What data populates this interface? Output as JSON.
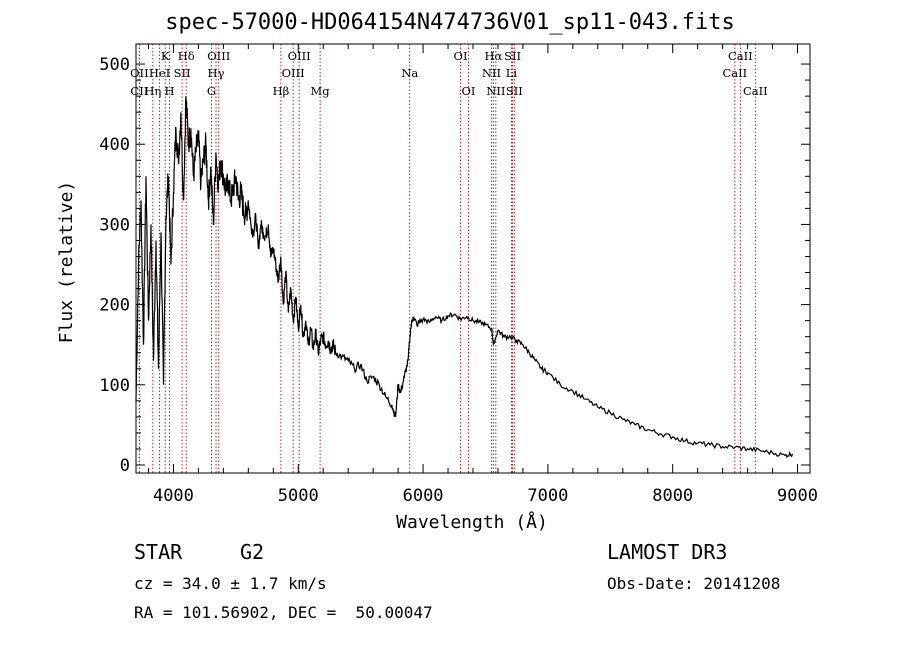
{
  "title": "spec-57000-HD064154N474736V01_sp11-043.fits",
  "footer": {
    "class_label": "STAR",
    "subclass": "G2",
    "survey": "LAMOST DR3",
    "cz": "cz = 34.0 ± 1.7 km/s",
    "obs_date": "Obs-Date: 20141208",
    "coords": "RA = 101.56902, DEC =  50.00047"
  },
  "chart_data": {
    "type": "line",
    "xlabel": "Wavelength (Å)",
    "ylabel": "Flux (relative)",
    "xlim": [
      3700,
      9100
    ],
    "ylim": [
      -10,
      525
    ],
    "xticks": [
      4000,
      5000,
      6000,
      7000,
      8000,
      9000
    ],
    "yticks": [
      0,
      100,
      200,
      300,
      400,
      500
    ],
    "line_color": "#000000",
    "marker_color": "#cc0000",
    "series": [
      {
        "x": [
          3700,
          3720,
          3740,
          3760,
          3780,
          3800,
          3820,
          3840,
          3860,
          3880,
          3900,
          3920,
          3940,
          3960,
          3980,
          4000,
          4020,
          4040,
          4060,
          4080,
          4100,
          4120,
          4140,
          4160,
          4180,
          4200,
          4220,
          4240,
          4260,
          4280,
          4300,
          4320,
          4340,
          4360,
          4380,
          4400,
          4420,
          4440,
          4460,
          4480,
          4500,
          4520,
          4540,
          4560,
          4580,
          4600,
          4620,
          4640,
          4660,
          4680,
          4700,
          4720,
          4740,
          4760,
          4780,
          4800,
          4820,
          4840,
          4860,
          4880,
          4900,
          4920,
          4940,
          4960,
          4980,
          5000,
          5020,
          5040,
          5060,
          5080,
          5100,
          5120,
          5140,
          5160,
          5180,
          5200,
          5220,
          5240,
          5260,
          5280,
          5300,
          5350,
          5400,
          5450,
          5500,
          5550,
          5600,
          5650,
          5700,
          5750,
          5780,
          5800,
          5820,
          5850,
          5880,
          5900,
          5920,
          5950,
          6000,
          6050,
          6100,
          6150,
          6200,
          6250,
          6300,
          6350,
          6400,
          6450,
          6500,
          6550,
          6563,
          6600,
          6650,
          6700,
          6750,
          6800,
          6850,
          6900,
          6950,
          7000,
          7100,
          7200,
          7300,
          7400,
          7500,
          7600,
          7700,
          7800,
          7900,
          8000,
          8100,
          8200,
          8300,
          8400,
          8500,
          8600,
          8700,
          8800,
          8900,
          8960
        ],
        "y": [
          80,
          250,
          330,
          150,
          360,
          180,
          300,
          130,
          280,
          120,
          290,
          100,
          310,
          360,
          250,
          340,
          420,
          380,
          440,
          330,
          460,
          400,
          420,
          360,
          390,
          410,
          350,
          380,
          400,
          330,
          370,
          300,
          390,
          350,
          380,
          360,
          340,
          355,
          330,
          345,
          360,
          330,
          340,
          320,
          310,
          330,
          300,
          290,
          310,
          270,
          300,
          290,
          285,
          300,
          260,
          270,
          250,
          230,
          260,
          200,
          240,
          190,
          220,
          180,
          210,
          170,
          200,
          160,
          180,
          150,
          170,
          145,
          165,
          140,
          155,
          160,
          150,
          155,
          145,
          150,
          140,
          135,
          130,
          120,
          125,
          105,
          110,
          100,
          85,
          75,
          60,
          100,
          90,
          110,
          130,
          170,
          185,
          175,
          182,
          178,
          185,
          180,
          186,
          188,
          182,
          185,
          180,
          178,
          175,
          170,
          150,
          168,
          160,
          160,
          155,
          150,
          140,
          130,
          120,
          115,
          100,
          92,
          82,
          72,
          65,
          57,
          50,
          44,
          39,
          35,
          30,
          27,
          25,
          23,
          22,
          20,
          18,
          15,
          12,
          14
        ]
      }
    ],
    "lines": [
      {
        "name": "Hδ",
        "x": 4102,
        "row": 1
      },
      {
        "name": "K",
        "x": 3934,
        "row": 1
      },
      {
        "name": "Hγ",
        "x": 4341,
        "row": 2
      },
      {
        "name": "OII",
        "x": 3727,
        "row": 2
      },
      {
        "name": "HeI",
        "x": 3889,
        "row": 2
      },
      {
        "name": "SII",
        "x": 4069,
        "row": 2
      },
      {
        "name": "CII",
        "x": 3727,
        "row": 3
      },
      {
        "name": "Hη",
        "x": 3835,
        "row": 3
      },
      {
        "name": "H",
        "x": 3969,
        "row": 3
      },
      {
        "name": "OIII",
        "x": 4363,
        "row": 1
      },
      {
        "name": "G",
        "x": 4305,
        "row": 3
      },
      {
        "name": "Hβ",
        "x": 4861,
        "row": 3
      },
      {
        "name": "OIII",
        "x": 5007,
        "row": 1
      },
      {
        "name": "OIII",
        "x": 4959,
        "row": 2
      },
      {
        "name": "Mg",
        "x": 5175,
        "row": 3
      },
      {
        "name": "Na",
        "x": 5893,
        "row": 2
      },
      {
        "name": "OI",
        "x": 6300,
        "row": 1
      },
      {
        "name": "OI",
        "x": 6364,
        "row": 3
      },
      {
        "name": "Hα",
        "x": 6563,
        "row": 1
      },
      {
        "name": "NII",
        "x": 6548,
        "row": 2
      },
      {
        "name": "NII",
        "x": 6583,
        "row": 3
      },
      {
        "name": "SII",
        "x": 6717,
        "row": 1
      },
      {
        "name": "Li",
        "x": 6708,
        "row": 2
      },
      {
        "name": "SII",
        "x": 6731,
        "row": 3
      },
      {
        "name": "CaII",
        "x": 8542,
        "row": 1
      },
      {
        "name": "CaII",
        "x": 8498,
        "row": 2
      },
      {
        "name": "CaII",
        "x": 8662,
        "row": 3
      }
    ]
  }
}
